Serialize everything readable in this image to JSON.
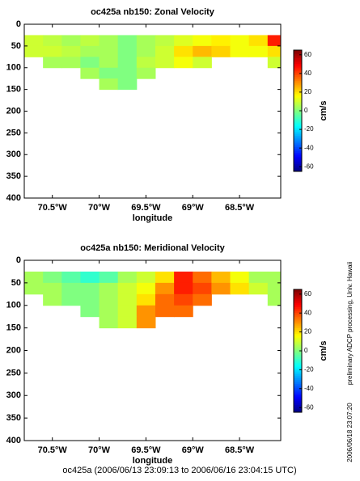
{
  "chart_data": [
    {
      "type": "heatmap",
      "title": "oc425a nb150: Zonal Velocity",
      "x_label": "longitude",
      "colorbar_label": "cm/s",
      "x": [
        -70.7,
        -70.5,
        -70.3,
        -70.1,
        -69.9,
        -69.7,
        -69.5,
        -69.3,
        -69.1,
        -68.9,
        -68.7,
        -68.5,
        -68.3,
        -68.1
      ],
      "y": [
        37.5,
        62.5,
        87.5,
        112.5,
        137.5
      ],
      "values": [
        [
          10,
          8,
          5,
          8,
          5,
          0,
          5,
          8,
          12,
          15,
          18,
          15,
          20,
          45
        ],
        [
          10,
          10,
          8,
          5,
          5,
          0,
          5,
          10,
          20,
          25,
          22,
          15,
          15,
          20
        ],
        [
          null,
          5,
          5,
          0,
          5,
          0,
          8,
          10,
          15,
          10,
          null,
          null,
          null,
          10
        ],
        [
          null,
          null,
          null,
          5,
          0,
          0,
          5,
          null,
          null,
          null,
          null,
          null,
          null,
          null
        ],
        [
          null,
          null,
          null,
          null,
          5,
          0,
          null,
          null,
          null,
          null,
          null,
          null,
          null,
          null
        ]
      ],
      "xlim": [
        -70.8,
        -68.06
      ],
      "ylim": [
        0,
        400
      ],
      "invert_y": true,
      "xticks": [
        {
          "value": -70.5,
          "label": "70.5°W"
        },
        {
          "value": -70,
          "label": "70°W"
        },
        {
          "value": -69.5,
          "label": "69.5°W"
        },
        {
          "value": -69,
          "label": "69°W"
        },
        {
          "value": -68.5,
          "label": "68.5°W"
        }
      ],
      "yticks": [
        0,
        50,
        100,
        150,
        200,
        250,
        300,
        350,
        400
      ],
      "clim": [
        -65,
        65
      ],
      "cticks": [
        -60,
        -40,
        -20,
        0,
        20,
        40,
        60
      ],
      "colormap": "jet"
    },
    {
      "type": "heatmap",
      "title": "oc425a nb150: Meridional Velocity",
      "x_label": "longitude",
      "colorbar_label": "cm/s",
      "x": [
        -70.7,
        -70.5,
        -70.3,
        -70.1,
        -69.9,
        -69.7,
        -69.5,
        -69.3,
        -69.1,
        -68.9,
        -68.7,
        -68.5,
        -68.3,
        -68.1
      ],
      "y": [
        37.5,
        62.5,
        87.5,
        112.5,
        137.5
      ],
      "values": [
        [
          5,
          0,
          -5,
          -10,
          -5,
          5,
          10,
          20,
          45,
          35,
          25,
          15,
          5,
          5
        ],
        [
          5,
          5,
          0,
          0,
          5,
          10,
          15,
          30,
          45,
          40,
          30,
          20,
          10,
          5
        ],
        [
          null,
          5,
          0,
          0,
          5,
          10,
          20,
          35,
          40,
          35,
          null,
          null,
          null,
          5
        ],
        [
          null,
          null,
          null,
          0,
          5,
          10,
          30,
          35,
          35,
          null,
          null,
          null,
          null,
          null
        ],
        [
          null,
          null,
          null,
          null,
          5,
          10,
          30,
          null,
          null,
          null,
          null,
          null,
          null,
          null
        ]
      ],
      "xlim": [
        -70.8,
        -68.06
      ],
      "ylim": [
        0,
        400
      ],
      "invert_y": true,
      "xticks": [
        {
          "value": -70.5,
          "label": "70.5°W"
        },
        {
          "value": -70,
          "label": "70°W"
        },
        {
          "value": -69.5,
          "label": "69.5°W"
        },
        {
          "value": -69,
          "label": "69°W"
        },
        {
          "value": -68.5,
          "label": "68.5°W"
        }
      ],
      "yticks": [
        0,
        50,
        100,
        150,
        200,
        250,
        300,
        350,
        400
      ],
      "clim": [
        -65,
        65
      ],
      "cticks": [
        -60,
        -40,
        -20,
        0,
        20,
        40,
        60
      ],
      "colormap": "jet"
    }
  ],
  "footer": "oc425a (2006/06/13 23:09:13 to 2006/06/16 23:04:15 UTC)",
  "side_note": "preliminary ADCP processing,   Univ. Hawaii",
  "timestamp": "2006/06/18 23:07:20"
}
